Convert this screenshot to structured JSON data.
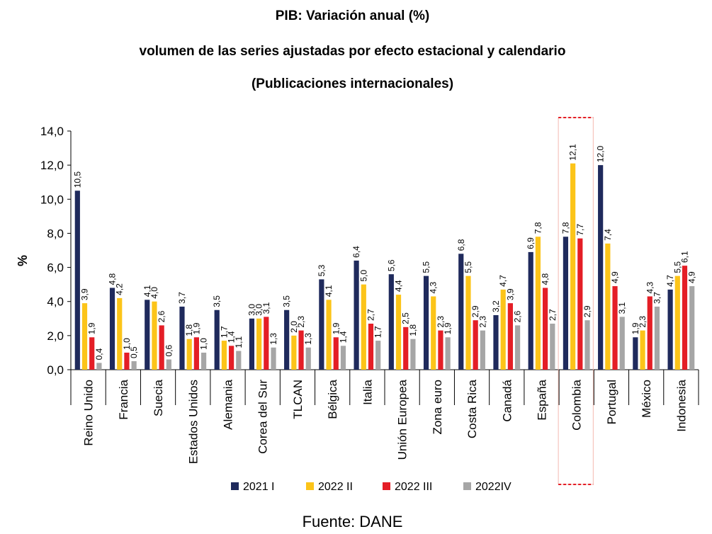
{
  "chart_data": {
    "type": "bar",
    "title_lines": [
      "PIB: Variación anual (%)",
      "volumen de las series ajustadas por efecto estacional y calendario",
      "(Publicaciones internacionales)"
    ],
    "ylabel": "%",
    "ylim": [
      0,
      14
    ],
    "yticks": [
      "0,0",
      "2,0",
      "4,0",
      "6,0",
      "8,0",
      "10,0",
      "12,0",
      "14,0"
    ],
    "highlight_category": "Colombia",
    "categories": [
      "Reino Unido",
      "Francia",
      "Suecia",
      "Estados Unidos",
      "Alemania",
      "Corea del Sur",
      "TLCAN",
      "Bélgica",
      "Italia",
      "Unión Europea",
      "Zona euro",
      "Costa Rica",
      "Canadá",
      "España",
      "Colombia",
      "Portugal",
      "México",
      "Indonesia"
    ],
    "series": [
      {
        "name": "2021 I",
        "color": "#1f2a5c",
        "values": [
          10.5,
          4.8,
          4.1,
          3.7,
          3.5,
          3.0,
          3.5,
          5.3,
          6.4,
          5.6,
          5.5,
          6.8,
          3.2,
          6.9,
          7.8,
          12.0,
          1.9,
          4.7
        ]
      },
      {
        "name": "2022 II",
        "color": "#fcc419",
        "values": [
          3.9,
          4.2,
          4.0,
          1.8,
          1.7,
          3.0,
          2.0,
          4.1,
          5.0,
          4.4,
          4.3,
          5.5,
          4.7,
          7.8,
          12.1,
          7.4,
          2.3,
          5.5
        ]
      },
      {
        "name": "2022 III",
        "color": "#e41e26",
        "values": [
          1.9,
          1.0,
          2.6,
          1.9,
          1.4,
          3.1,
          2.3,
          1.9,
          2.7,
          2.5,
          2.3,
          2.9,
          3.9,
          4.8,
          7.7,
          4.9,
          4.3,
          6.1
        ]
      },
      {
        "name": "2022IV",
        "color": "#a6a6a6",
        "values": [
          0.4,
          0.5,
          0.6,
          1.0,
          1.1,
          1.3,
          1.3,
          1.4,
          1.7,
          1.8,
          1.9,
          2.3,
          2.6,
          2.7,
          2.9,
          3.1,
          3.7,
          4.9
        ]
      }
    ],
    "value_labels": [
      [
        "10,5",
        "3,9",
        "1,9",
        "0,4"
      ],
      [
        "4,8",
        "4,2",
        "1,0",
        "0,5"
      ],
      [
        "4,1",
        "4,0",
        "2,6",
        "0,6"
      ],
      [
        "3,7",
        "1,8",
        "1,9",
        "1,0"
      ],
      [
        "3,5",
        "1,7",
        "1,4",
        "1,1"
      ],
      [
        "3,0",
        "3,0",
        "3,1",
        "1,3"
      ],
      [
        "3,5",
        "2,0",
        "2,3",
        "1,3"
      ],
      [
        "5,3",
        "4,1",
        "1,9",
        "1,4"
      ],
      [
        "6,4",
        "5,0",
        "2,7",
        "1,7"
      ],
      [
        "5,6",
        "4,4",
        "2,5",
        "1,8"
      ],
      [
        "5,5",
        "4,3",
        "2,3",
        "1,9"
      ],
      [
        "6,8",
        "5,5",
        "2,9",
        "2,3"
      ],
      [
        "3,2",
        "4,7",
        "3,9",
        "2,6"
      ],
      [
        "6,9",
        "7,8",
        "4,8",
        "2,7"
      ],
      [
        "7,8",
        "12,1",
        "7,7",
        "2,9"
      ],
      [
        "12,0",
        "7,4",
        "4,9",
        "3,1"
      ],
      [
        "1,9",
        "2,3",
        "4,3",
        "3,7"
      ],
      [
        "4,7",
        "5,5",
        "6,1",
        "4,9"
      ]
    ],
    "legend_position": "bottom",
    "source": "Fuente: DANE"
  }
}
